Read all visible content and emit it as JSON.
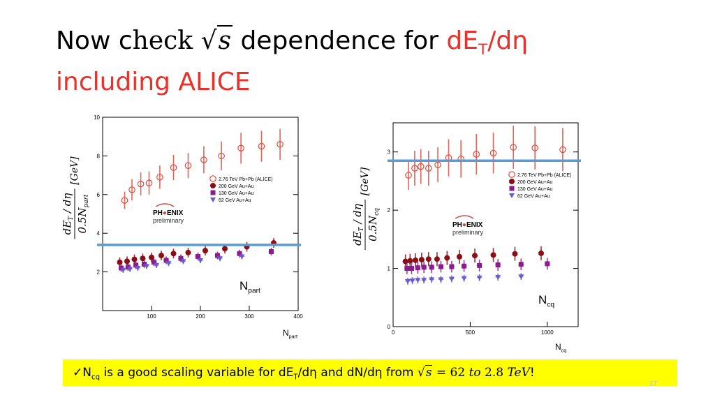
{
  "title": {
    "line1_prefix": "Now c",
    "line1_check": "heck",
    "line1_sqrt": "s",
    "line1_mid": " dependence for ",
    "line1_red": "dE",
    "line1_red_sub": "T",
    "line1_red_tail": "/dη",
    "line2": "including ALICE"
  },
  "banner": {
    "check": "✓",
    "n": "N",
    "n_sub": "cq",
    "text1": " is a good scaling variable for dE",
    "text1_sub": "T",
    "text2": "/dη and dN/dη  from ",
    "sqrt_s": "s",
    "eq": " = 62 ",
    "to": "to",
    "tail": " 2.8 ",
    "tev": "TeV",
    "excl": "!"
  },
  "slide_number": "17",
  "colors": {
    "alice": "#e24a3b",
    "au200": "#8a0f15",
    "au130": "#8b1c8e",
    "au62": "#6a5acd",
    "hline": "#5b9bd5",
    "banner": "#ffff00",
    "title_red": "#e8312a"
  },
  "chart_data": [
    {
      "type": "scatter",
      "name": "left",
      "ylabel": "dE_T / dη / 0.5N_part [GeV]",
      "ylabel_num": "dE",
      "ylabel_num_sub": "T",
      "ylabel_num_tail": " / dη",
      "ylabel_unit": "[GeV]",
      "ylabel_den": "0.5N",
      "ylabel_den_sub": "part",
      "xlabel": "N",
      "xlabel_sub": "part",
      "note": "N",
      "note_sub": "part",
      "xlim": [
        0,
        400
      ],
      "ylim": [
        0,
        10
      ],
      "xticks": [
        100,
        200,
        300,
        400
      ],
      "yticks": [
        0,
        2,
        4,
        6,
        8,
        10
      ],
      "ytick_labels": [
        "",
        "2",
        "4",
        "6",
        "8",
        "10"
      ],
      "hline": 3.4,
      "legend_position": "middle-right",
      "logo_line1": "PH",
      "logo_line1b": "ENIX",
      "logo_line2": "preliminary",
      "series": [
        {
          "name": "2.76 TeV Pb+Pb (ALICE)",
          "marker": "open-circle",
          "x": [
            45,
            60,
            78,
            95,
            117,
            145,
            175,
            207,
            243,
            283,
            325,
            363
          ],
          "y": [
            5.7,
            6.25,
            6.55,
            6.6,
            6.9,
            7.4,
            7.5,
            7.8,
            8.0,
            8.4,
            8.5,
            8.6
          ],
          "err": [
            0.45,
            0.55,
            0.6,
            0.6,
            0.6,
            0.65,
            0.65,
            0.7,
            0.75,
            0.8,
            0.8,
            0.8
          ]
        },
        {
          "name": "200 GeV Au+Au",
          "marker": "filled-circle",
          "x": [
            35,
            50,
            65,
            82,
            100,
            120,
            145,
            175,
            210,
            250,
            295,
            350
          ],
          "y": [
            2.5,
            2.55,
            2.65,
            2.7,
            2.75,
            2.85,
            2.95,
            3.0,
            3.1,
            3.2,
            3.3,
            3.5
          ],
          "err": [
            0.25,
            0.25,
            0.25,
            0.25,
            0.25,
            0.25,
            0.25,
            0.25,
            0.25,
            0.25,
            0.25,
            0.25
          ]
        },
        {
          "name": "130 GeV Au+Au",
          "marker": "filled-square",
          "x": [
            38,
            52,
            68,
            85,
            105,
            130,
            160,
            195,
            235,
            280,
            345
          ],
          "y": [
            2.2,
            2.25,
            2.35,
            2.4,
            2.5,
            2.6,
            2.7,
            2.8,
            2.85,
            2.95,
            3.05
          ],
          "err": [
            0.2,
            0.2,
            0.2,
            0.2,
            0.2,
            0.2,
            0.2,
            0.2,
            0.2,
            0.2,
            0.2
          ]
        },
        {
          "name": "62 GeV Au+Au",
          "marker": "filled-triangle-down",
          "x": [
            42,
            56,
            72,
            90,
            110,
            135,
            165,
            200,
            240,
            285
          ],
          "y": [
            2.1,
            2.15,
            2.2,
            2.3,
            2.35,
            2.45,
            2.55,
            2.6,
            2.7,
            2.8
          ],
          "err": [
            0.15,
            0.15,
            0.15,
            0.15,
            0.15,
            0.15,
            0.15,
            0.15,
            0.15,
            0.15
          ]
        }
      ]
    },
    {
      "type": "scatter",
      "name": "right",
      "ylabel": "dE_T / dη / 0.5N_cq [GeV]",
      "ylabel_num": "dE",
      "ylabel_num_sub": "T",
      "ylabel_num_tail": " / dη",
      "ylabel_unit": "[GeV]",
      "ylabel_den": "0.5N",
      "ylabel_den_sub": "cq",
      "xlabel": "N",
      "xlabel_sub": "cq",
      "note": "N",
      "note_sub": "cq",
      "xlim": [
        0,
        1200
      ],
      "ylim": [
        0,
        3.5
      ],
      "xticks": [
        0,
        500,
        1000
      ],
      "yticks": [
        0,
        1,
        2,
        3
      ],
      "ytick_labels": [
        "0",
        "1",
        "2",
        "3"
      ],
      "hline": 2.85,
      "legend_position": "top-right",
      "logo_line1": "PH",
      "logo_line1b": "ENIX",
      "logo_line2": "preliminary",
      "series": [
        {
          "name": "2.76 TeV Pb+Pb (ALICE)",
          "marker": "open-circle",
          "x": [
            100,
            140,
            180,
            230,
            290,
            360,
            440,
            540,
            650,
            780,
            920,
            1100
          ],
          "y": [
            2.6,
            2.72,
            2.75,
            2.72,
            2.78,
            2.9,
            2.88,
            2.96,
            2.98,
            3.08,
            3.07,
            3.04
          ],
          "err": [
            0.25,
            0.3,
            0.3,
            0.3,
            0.3,
            0.32,
            0.32,
            0.35,
            0.35,
            0.37,
            0.37,
            0.37
          ]
        },
        {
          "name": "200 GeV Au+Au",
          "marker": "filled-circle",
          "x": [
            80,
            110,
            145,
            185,
            230,
            285,
            350,
            430,
            530,
            650,
            790,
            960
          ],
          "y": [
            1.12,
            1.13,
            1.14,
            1.15,
            1.16,
            1.16,
            1.18,
            1.2,
            1.22,
            1.23,
            1.25,
            1.26
          ],
          "err": [
            0.12,
            0.12,
            0.12,
            0.12,
            0.12,
            0.12,
            0.12,
            0.12,
            0.12,
            0.12,
            0.12,
            0.12
          ]
        },
        {
          "name": "130 GeV Au+Au",
          "marker": "filled-square",
          "x": [
            90,
            120,
            160,
            200,
            250,
            310,
            380,
            460,
            560,
            680,
            830,
            1000
          ],
          "y": [
            1.0,
            1.0,
            1.01,
            1.02,
            1.02,
            1.03,
            1.03,
            1.04,
            1.05,
            1.06,
            1.07,
            1.08
          ],
          "err": [
            0.1,
            0.1,
            0.1,
            0.1,
            0.1,
            0.1,
            0.1,
            0.1,
            0.1,
            0.1,
            0.1,
            0.1
          ]
        },
        {
          "name": "62 GeV Au+Au",
          "marker": "filled-triangle-down",
          "x": [
            95,
            125,
            160,
            200,
            250,
            310,
            380,
            460,
            560,
            680,
            830
          ],
          "y": [
            0.78,
            0.79,
            0.8,
            0.8,
            0.81,
            0.81,
            0.82,
            0.83,
            0.84,
            0.85,
            0.86
          ],
          "err": [
            0.06,
            0.06,
            0.06,
            0.06,
            0.06,
            0.06,
            0.06,
            0.06,
            0.06,
            0.06,
            0.06
          ]
        }
      ]
    }
  ]
}
